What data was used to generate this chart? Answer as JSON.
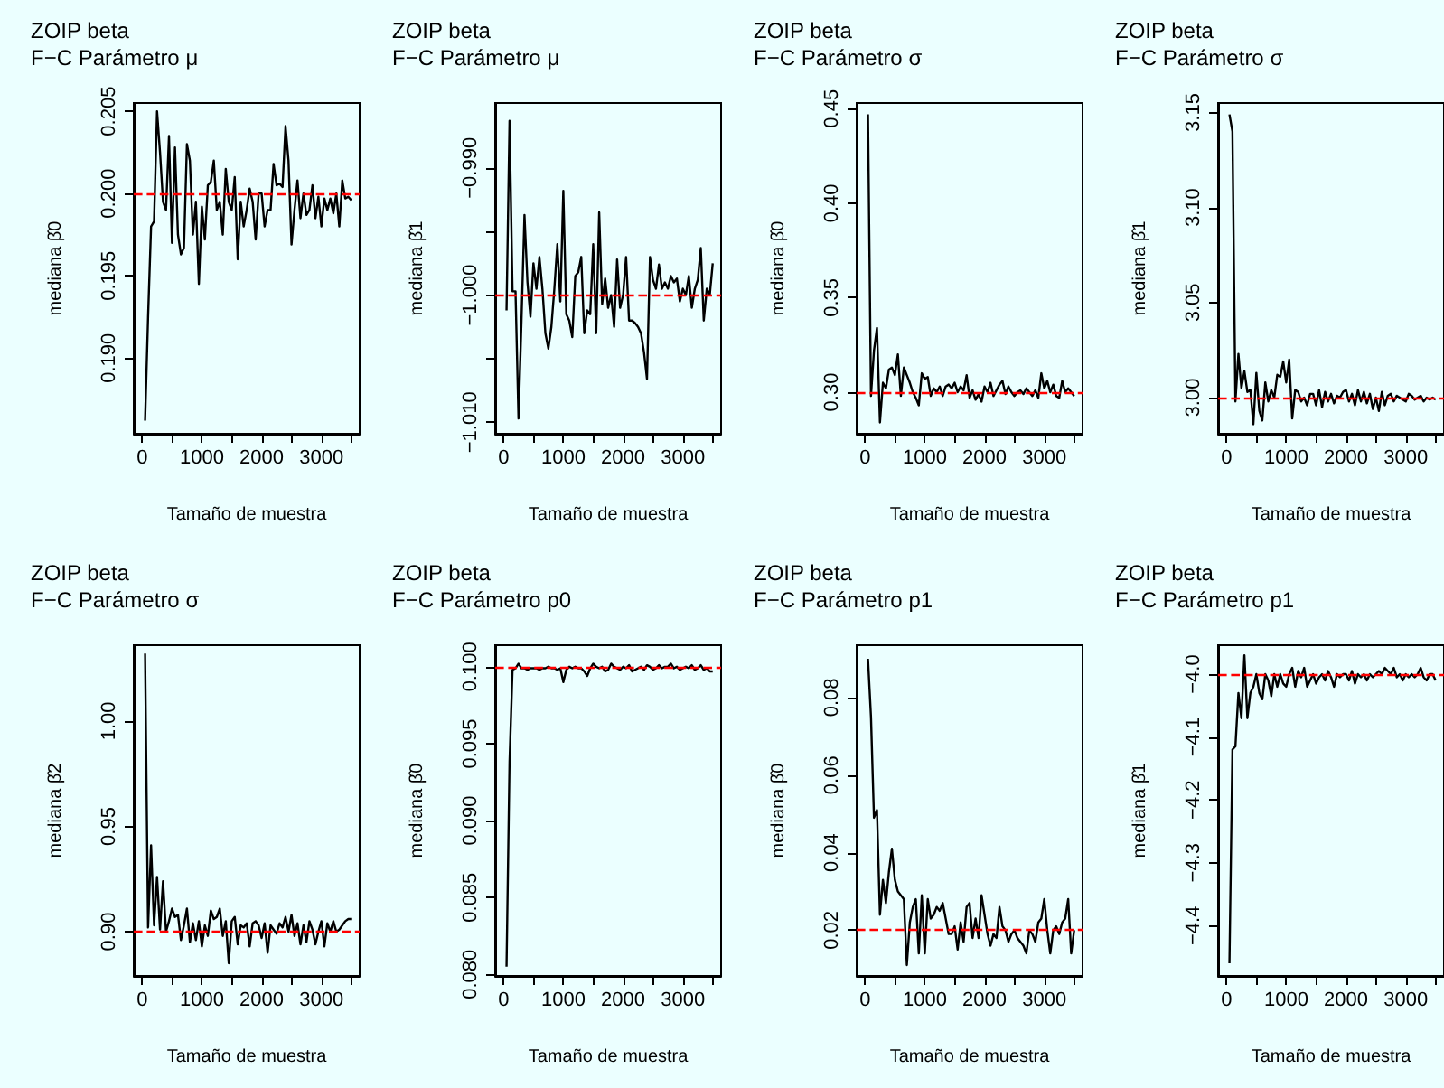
{
  "chart_data": [
    {
      "type": "line",
      "title": "ZOIP beta",
      "subtitle": "F−C Parámetro μ",
      "xlabel": "Tamaño de muestra",
      "ylabel": "mediana β̂0",
      "xlim": [
        -140,
        3640
      ],
      "xticks": [
        0,
        {
          "value": 500,
          "label": null
        },
        1000,
        {
          "value": 1500,
          "label": null
        },
        2000,
        {
          "value": 2500,
          "label": null
        },
        3000,
        {
          "value": 3500,
          "label": null
        }
      ],
      "ylim": [
        0.1854,
        0.2055
      ],
      "yticks": [
        {
          "value": 0.19,
          "label": "0.190"
        },
        {
          "value": 0.195,
          "label": "0.195"
        },
        {
          "value": 0.2,
          "label": "0.200"
        },
        {
          "value": 0.205,
          "label": "0.205"
        }
      ],
      "ref_lines": [
        {
          "axis": "y",
          "value": 0.2,
          "color": "#ff0000",
          "line_style": "dashed"
        }
      ],
      "x": [
        50,
        100,
        150,
        200,
        250,
        300,
        350,
        400,
        450,
        500,
        550,
        600,
        650,
        700,
        750,
        800,
        850,
        900,
        950,
        1000,
        1050,
        1100,
        1150,
        1200,
        1250,
        1300,
        1350,
        1400,
        1450,
        1500,
        1550,
        1600,
        1650,
        1700,
        1750,
        1800,
        1850,
        1900,
        1950,
        2000,
        2050,
        2100,
        2150,
        2200,
        2250,
        2300,
        2350,
        2400,
        2450,
        2500,
        2550,
        2600,
        2650,
        2700,
        2750,
        2800,
        2850,
        2900,
        2950,
        3000,
        3050,
        3100,
        3150,
        3200,
        3250,
        3300,
        3350,
        3400,
        3450,
        3500
      ],
      "series": [
        {
          "color": "#000000",
          "values": [
            0.1862,
            0.1925,
            0.198,
            0.1983,
            0.205,
            0.2025,
            0.1995,
            0.199,
            0.2035,
            0.197,
            0.2028,
            0.1975,
            0.1963,
            0.1967,
            0.203,
            0.202,
            0.1975,
            0.1995,
            0.1945,
            0.1992,
            0.1972,
            0.2005,
            0.2007,
            0.202,
            0.199,
            0.1995,
            0.1975,
            0.2015,
            0.1995,
            0.199,
            0.201,
            0.196,
            0.1995,
            0.198,
            0.199,
            0.2003,
            0.1995,
            0.1972,
            0.2,
            0.2,
            0.198,
            0.199,
            0.199,
            0.2018,
            0.2005,
            0.2006,
            0.2004,
            0.2041,
            0.202,
            0.1969,
            0.199,
            0.2008,
            0.1985,
            0.2,
            0.1987,
            0.199,
            0.2005,
            0.1985,
            0.1998,
            0.198,
            0.1997,
            0.199,
            0.1997,
            0.1988,
            0.2,
            0.198,
            0.2008,
            0.1997,
            0.1998,
            0.1996
          ]
        }
      ]
    },
    {
      "type": "line",
      "title": "ZOIP beta",
      "subtitle": "F−C Parámetro μ",
      "xlabel": "Tamaño de muestra",
      "ylabel": "mediana β̂1",
      "xlim": [
        -140,
        3640
      ],
      "xticks": [
        0,
        {
          "value": 500,
          "label": null
        },
        1000,
        {
          "value": 1500,
          "label": null
        },
        2000,
        {
          "value": 2500,
          "label": null
        },
        3000,
        {
          "value": 3500,
          "label": null
        }
      ],
      "ylim": [
        -1.0109,
        -0.9849
      ],
      "yticks": [
        {
          "value": -1.01,
          "label": "−1.010"
        },
        {
          "value": -1.005,
          "label": null
        },
        {
          "value": -1.0,
          "label": "−1.000"
        },
        {
          "value": -0.995,
          "label": null
        },
        {
          "value": -0.99,
          "label": "−0.990"
        }
      ],
      "ref_lines": [
        {
          "axis": "y",
          "value": -1.0,
          "color": "#ff0000",
          "line_style": "dashed"
        }
      ],
      "x": [
        50,
        100,
        150,
        200,
        250,
        300,
        350,
        400,
        450,
        500,
        550,
        600,
        650,
        700,
        750,
        800,
        850,
        900,
        950,
        1000,
        1050,
        1100,
        1150,
        1200,
        1250,
        1300,
        1350,
        1400,
        1450,
        1500,
        1550,
        1600,
        1650,
        1700,
        1750,
        1800,
        1850,
        1900,
        1950,
        2000,
        2050,
        2100,
        2150,
        2200,
        2250,
        2300,
        2350,
        2400,
        2450,
        2500,
        2550,
        2600,
        2650,
        2700,
        2750,
        2800,
        2850,
        2900,
        2950,
        3000,
        3050,
        3100,
        3150,
        3200,
        3250,
        3300,
        3350,
        3400,
        3450,
        3500
      ],
      "series": [
        {
          "color": "#000000",
          "values": [
            -1.0012,
            -0.9863,
            -0.9997,
            -0.9997,
            -1.0097,
            -1.002,
            -0.9937,
            -0.999,
            -1.0017,
            -0.9975,
            -0.9995,
            -0.997,
            -0.9995,
            -1.003,
            -1.0042,
            -1.0025,
            -0.9995,
            -0.996,
            -1.0005,
            -0.9918,
            -1.0015,
            -1.002,
            -1.0033,
            -0.9985,
            -0.9982,
            -0.997,
            -1.003,
            -1.0012,
            -1.0015,
            -0.996,
            -1.003,
            -0.9935,
            -1.0007,
            -0.9987,
            -1.001,
            -1.0,
            -1.0025,
            -0.9972,
            -1.001,
            -1.0,
            -0.997,
            -1.002,
            -1.002,
            -1.0022,
            -1.0025,
            -1.003,
            -1.0045,
            -1.0066,
            -0.997,
            -0.9988,
            -0.9995,
            -0.9976,
            -0.9995,
            -0.999,
            -0.9995,
            -0.9985,
            -0.999,
            -0.9987,
            -1.0005,
            -0.9995,
            -1.0,
            -0.9985,
            -1.001,
            -0.9995,
            -0.9988,
            -0.9963,
            -1.002,
            -0.9995,
            -1.0,
            -0.9975
          ]
        }
      ]
    },
    {
      "type": "line",
      "title": "ZOIP beta",
      "subtitle": "F−C Parámetro σ",
      "xlabel": "Tamaño de muestra",
      "ylabel": "mediana β̂0",
      "xlim": [
        -140,
        3640
      ],
      "xticks": [
        0,
        {
          "value": 500,
          "label": null
        },
        1000,
        {
          "value": 1500,
          "label": null
        },
        2000,
        {
          "value": 2500,
          "label": null
        },
        3000,
        {
          "value": 3500,
          "label": null
        }
      ],
      "ylim": [
        0.278,
        0.453
      ],
      "yticks": [
        {
          "value": 0.3,
          "label": "0.30"
        },
        {
          "value": 0.35,
          "label": "0.35"
        },
        {
          "value": 0.4,
          "label": "0.40"
        },
        {
          "value": 0.45,
          "label": "0.45"
        }
      ],
      "ref_lines": [
        {
          "axis": "y",
          "value": 0.3,
          "color": "#ff0000",
          "line_style": "dashed"
        }
      ],
      "x": [
        50,
        100,
        150,
        200,
        250,
        300,
        350,
        400,
        450,
        500,
        550,
        600,
        650,
        700,
        750,
        800,
        850,
        900,
        950,
        1000,
        1050,
        1100,
        1150,
        1200,
        1250,
        1300,
        1350,
        1400,
        1450,
        1500,
        1550,
        1600,
        1650,
        1700,
        1750,
        1800,
        1850,
        1900,
        1950,
        2000,
        2050,
        2100,
        2150,
        2200,
        2250,
        2300,
        2350,
        2400,
        2450,
        2500,
        2550,
        2600,
        2650,
        2700,
        2750,
        2800,
        2850,
        2900,
        2950,
        3000,
        3050,
        3100,
        3150,
        3200,
        3250,
        3300,
        3350,
        3400,
        3450,
        3500
      ],
      "series": [
        {
          "color": "#000000",
          "values": [
            0.447,
            0.298,
            0.322,
            0.334,
            0.284,
            0.305,
            0.302,
            0.312,
            0.313,
            0.309,
            0.32,
            0.298,
            0.313,
            0.309,
            0.305,
            0.3,
            0.297,
            0.293,
            0.31,
            0.307,
            0.308,
            0.298,
            0.302,
            0.3,
            0.303,
            0.298,
            0.303,
            0.304,
            0.302,
            0.305,
            0.3,
            0.303,
            0.301,
            0.309,
            0.297,
            0.301,
            0.296,
            0.299,
            0.295,
            0.303,
            0.3,
            0.305,
            0.298,
            0.301,
            0.304,
            0.306,
            0.299,
            0.303,
            0.3,
            0.298,
            0.3,
            0.301,
            0.299,
            0.302,
            0.3,
            0.298,
            0.301,
            0.297,
            0.31,
            0.302,
            0.306,
            0.3,
            0.304,
            0.298,
            0.297,
            0.306,
            0.3,
            0.302,
            0.3,
            0.298
          ]
        }
      ]
    },
    {
      "type": "line",
      "title": "ZOIP beta",
      "subtitle": "F−C Parámetro σ",
      "xlabel": "Tamaño de muestra",
      "ylabel": "mediana β̂1",
      "xlim": [
        -140,
        3640
      ],
      "xticks": [
        0,
        {
          "value": 500,
          "label": null
        },
        1000,
        {
          "value": 1500,
          "label": null
        },
        2000,
        {
          "value": 2500,
          "label": null
        },
        3000,
        {
          "value": 3500,
          "label": null
        }
      ],
      "ylim": [
        2.981,
        3.155
      ],
      "yticks": [
        {
          "value": 3.0,
          "label": "3.00"
        },
        {
          "value": 3.05,
          "label": "3.05"
        },
        {
          "value": 3.1,
          "label": "3.10"
        },
        {
          "value": 3.15,
          "label": "3.15"
        }
      ],
      "ref_lines": [
        {
          "axis": "y",
          "value": 3.0,
          "color": "#ff0000",
          "line_style": "dashed"
        }
      ],
      "x": [
        50,
        100,
        150,
        200,
        250,
        300,
        350,
        400,
        450,
        500,
        550,
        600,
        650,
        700,
        750,
        800,
        850,
        900,
        950,
        1000,
        1050,
        1100,
        1150,
        1200,
        1250,
        1300,
        1350,
        1400,
        1450,
        1500,
        1550,
        1600,
        1650,
        1700,
        1750,
        1800,
        1850,
        1900,
        1950,
        2000,
        2050,
        2100,
        2150,
        2200,
        2250,
        2300,
        2350,
        2400,
        2450,
        2500,
        2550,
        2600,
        2650,
        2700,
        2750,
        2800,
        2850,
        2900,
        2950,
        3000,
        3050,
        3100,
        3150,
        3200,
        3250,
        3300,
        3350,
        3400,
        3450,
        3500
      ],
      "series": [
        {
          "color": "#000000",
          "values": [
            3.149,
            3.14,
            2.998,
            3.023,
            3.005,
            3.014,
            3.003,
            3.004,
            2.986,
            3.013,
            2.993,
            2.988,
            3.008,
            2.998,
            3.004,
            3.0,
            3.012,
            3.011,
            3.019,
            3.008,
            3.02,
            2.989,
            3.004,
            3.003,
            2.998,
            3.0,
            2.996,
            3.002,
            3.002,
            2.996,
            3.004,
            2.995,
            3.003,
            2.998,
            3.002,
            2.997,
            3.001,
            3.0,
            3.003,
            3.004,
            2.998,
            3.002,
            2.996,
            3.004,
            2.998,
            3.003,
            2.997,
            3.002,
            2.994,
            3.0,
            2.993,
            3.003,
            2.996,
            3.001,
            3.002,
            2.998,
            3.001,
            3.0,
            2.999,
            2.998,
            3.002,
            3.001,
            2.999,
            3.0,
            3.001,
            2.998,
            3.0,
            2.999,
            3.0,
            2.999
          ]
        }
      ]
    },
    {
      "type": "line",
      "title": "ZOIP beta",
      "subtitle": "F−C Parámetro σ",
      "xlabel": "Tamaño de muestra",
      "ylabel": "mediana β̂2",
      "xlim": [
        -140,
        3640
      ],
      "xticks": [
        0,
        {
          "value": 500,
          "label": null
        },
        1000,
        {
          "value": 1500,
          "label": null
        },
        2000,
        {
          "value": 2500,
          "label": null
        },
        3000,
        {
          "value": 3500,
          "label": null
        }
      ],
      "ylim": [
        0.879,
        1.036
      ],
      "yticks": [
        {
          "value": 0.9,
          "label": "0.90"
        },
        {
          "value": 0.95,
          "label": "0.95"
        },
        {
          "value": 1.0,
          "label": "1.00"
        }
      ],
      "ref_lines": [
        {
          "axis": "y",
          "value": 0.9,
          "color": "#ff0000",
          "line_style": "dashed"
        }
      ],
      "x": [
        50,
        100,
        150,
        200,
        250,
        300,
        350,
        400,
        450,
        500,
        550,
        600,
        650,
        700,
        750,
        800,
        850,
        900,
        950,
        1000,
        1050,
        1100,
        1150,
        1200,
        1250,
        1300,
        1350,
        1400,
        1450,
        1500,
        1550,
        1600,
        1650,
        1700,
        1750,
        1800,
        1850,
        1900,
        1950,
        2000,
        2050,
        2100,
        2150,
        2200,
        2250,
        2300,
        2350,
        2400,
        2450,
        2500,
        2550,
        2600,
        2650,
        2700,
        2750,
        2800,
        2850,
        2900,
        2950,
        3000,
        3050,
        3100,
        3150,
        3200,
        3250,
        3300,
        3350,
        3400,
        3450,
        3500
      ],
      "series": [
        {
          "color": "#000000",
          "values": [
            1.032,
            0.902,
            0.941,
            0.903,
            0.926,
            0.901,
            0.924,
            0.9,
            0.905,
            0.911,
            0.907,
            0.908,
            0.896,
            0.903,
            0.911,
            0.895,
            0.904,
            0.896,
            0.905,
            0.893,
            0.903,
            0.898,
            0.91,
            0.906,
            0.907,
            0.911,
            0.898,
            0.905,
            0.885,
            0.905,
            0.907,
            0.894,
            0.903,
            0.902,
            0.904,
            0.893,
            0.904,
            0.905,
            0.903,
            0.897,
            0.904,
            0.89,
            0.903,
            0.901,
            0.899,
            0.904,
            0.902,
            0.907,
            0.9,
            0.908,
            0.898,
            0.904,
            0.894,
            0.903,
            0.895,
            0.905,
            0.901,
            0.894,
            0.9,
            0.905,
            0.893,
            0.904,
            0.9,
            0.905,
            0.9,
            0.901,
            0.903,
            0.905,
            0.906,
            0.906
          ]
        }
      ]
    },
    {
      "type": "line",
      "title": "ZOIP beta",
      "subtitle": "F−C Parámetro p0",
      "xlabel": "Tamaño de muestra",
      "ylabel": "mediana β̂0",
      "xlim": [
        -140,
        3640
      ],
      "xticks": [
        0,
        {
          "value": 500,
          "label": null
        },
        1000,
        {
          "value": 1500,
          "label": null
        },
        2000,
        {
          "value": 2500,
          "label": null
        },
        3000,
        {
          "value": 3500,
          "label": null
        }
      ],
      "ylim": [
        0.0799,
        0.1014
      ],
      "yticks": [
        {
          "value": 0.08,
          "label": "0.080"
        },
        {
          "value": 0.085,
          "label": "0.085"
        },
        {
          "value": 0.09,
          "label": "0.090"
        },
        {
          "value": 0.095,
          "label": "0.095"
        },
        {
          "value": 0.1,
          "label": "0.100"
        }
      ],
      "ref_lines": [
        {
          "axis": "y",
          "value": 0.1,
          "color": "#ff0000",
          "line_style": "dashed"
        }
      ],
      "x": [
        50,
        100,
        150,
        200,
        250,
        300,
        350,
        400,
        450,
        500,
        550,
        600,
        650,
        700,
        750,
        800,
        850,
        900,
        950,
        1000,
        1050,
        1100,
        1150,
        1200,
        1250,
        1300,
        1350,
        1400,
        1450,
        1500,
        1550,
        1600,
        1650,
        1700,
        1750,
        1800,
        1850,
        1900,
        1950,
        2000,
        2050,
        2100,
        2150,
        2200,
        2250,
        2300,
        2350,
        2400,
        2450,
        2500,
        2550,
        2600,
        2650,
        2700,
        2750,
        2800,
        2850,
        2900,
        2950,
        3000,
        3050,
        3100,
        3150,
        3200,
        3250,
        3300,
        3350,
        3400,
        3450,
        3500
      ],
      "series": [
        {
          "color": "#000000",
          "values": [
            0.0805,
            0.0938,
            0.0998,
            0.0999,
            0.1002,
            0.0999,
            0.0999,
            0.0998,
            0.0999,
            0.0999,
            0.0999,
            0.0998,
            0.0999,
            0.0999,
            0.1,
            0.0999,
            0.0999,
            0.0998,
            0.0999,
            0.099,
            0.0998,
            0.1,
            0.0999,
            0.1,
            0.0999,
            0.0999,
            0.0997,
            0.0994,
            0.0999,
            0.1002,
            0.1,
            0.0999,
            0.1,
            0.0997,
            0.0998,
            0.1002,
            0.1,
            0.0999,
            0.0998,
            0.1,
            0.0999,
            0.1001,
            0.0997,
            0.0998,
            0.0999,
            0.1,
            0.0998,
            0.1001,
            0.1,
            0.0998,
            0.0999,
            0.1001,
            0.0999,
            0.1,
            0.1,
            0.1002,
            0.0999,
            0.1,
            0.0998,
            0.0999,
            0.1,
            0.0999,
            0.1001,
            0.0998,
            0.0999,
            0.1001,
            0.0998,
            0.0999,
            0.0997,
            0.0997
          ]
        }
      ]
    },
    {
      "type": "line",
      "title": "ZOIP beta",
      "subtitle": "F−C Parámetro p1",
      "xlabel": "Tamaño de muestra",
      "ylabel": "mediana β̂0",
      "xlim": [
        -140,
        3640
      ],
      "xticks": [
        0,
        {
          "value": 500,
          "label": null
        },
        1000,
        {
          "value": 1500,
          "label": null
        },
        2000,
        {
          "value": 2500,
          "label": null
        },
        3000,
        {
          "value": 3500,
          "label": null
        }
      ],
      "ylim": [
        0.0082,
        0.0935
      ],
      "yticks": [
        {
          "value": 0.02,
          "label": "0.02"
        },
        {
          "value": 0.04,
          "label": "0.04"
        },
        {
          "value": 0.06,
          "label": "0.06"
        },
        {
          "value": 0.08,
          "label": "0.08"
        }
      ],
      "ref_lines": [
        {
          "axis": "y",
          "value": 0.02,
          "color": "#ff0000",
          "line_style": "dashed"
        }
      ],
      "x": [
        50,
        100,
        150,
        200,
        250,
        300,
        350,
        400,
        450,
        500,
        550,
        600,
        650,
        700,
        750,
        800,
        850,
        900,
        950,
        1000,
        1050,
        1100,
        1150,
        1200,
        1250,
        1300,
        1350,
        1400,
        1450,
        1500,
        1550,
        1600,
        1650,
        1700,
        1750,
        1800,
        1850,
        1900,
        1950,
        2000,
        2050,
        2100,
        2150,
        2200,
        2250,
        2300,
        2350,
        2400,
        2450,
        2500,
        2550,
        2600,
        2650,
        2700,
        2750,
        2800,
        2850,
        2900,
        2950,
        3000,
        3050,
        3100,
        3150,
        3200,
        3250,
        3300,
        3350,
        3400,
        3450,
        3500
      ],
      "series": [
        {
          "color": "#000000",
          "values": [
            0.09,
            0.075,
            0.049,
            0.051,
            0.024,
            0.033,
            0.027,
            0.035,
            0.041,
            0.033,
            0.03,
            0.029,
            0.028,
            0.011,
            0.022,
            0.026,
            0.028,
            0.014,
            0.029,
            0.014,
            0.028,
            0.023,
            0.024,
            0.026,
            0.025,
            0.027,
            0.023,
            0.019,
            0.019,
            0.021,
            0.015,
            0.022,
            0.017,
            0.026,
            0.027,
            0.018,
            0.023,
            0.018,
            0.029,
            0.024,
            0.019,
            0.016,
            0.019,
            0.018,
            0.026,
            0.021,
            0.02,
            0.017,
            0.019,
            0.02,
            0.018,
            0.017,
            0.016,
            0.014,
            0.02,
            0.019,
            0.017,
            0.022,
            0.023,
            0.028,
            0.02,
            0.014,
            0.02,
            0.021,
            0.019,
            0.022,
            0.023,
            0.028,
            0.014,
            0.02
          ]
        }
      ]
    },
    {
      "type": "line",
      "title": "ZOIP beta",
      "subtitle": "F−C Parámetro p1",
      "xlabel": "Tamaño de muestra",
      "ylabel": "mediana β̂1",
      "xlim": [
        -140,
        3640
      ],
      "xticks": [
        0,
        {
          "value": 500,
          "label": null
        },
        1000,
        {
          "value": 1500,
          "label": null
        },
        2000,
        {
          "value": 2500,
          "label": null
        },
        3000,
        {
          "value": 3500,
          "label": null
        }
      ],
      "ylim": [
        -4.48,
        -3.954
      ],
      "yticks": [
        {
          "value": -4.4,
          "label": "−4.4"
        },
        {
          "value": -4.3,
          "label": "−4.3"
        },
        {
          "value": -4.2,
          "label": "−4.2"
        },
        {
          "value": -4.1,
          "label": "−4.1"
        },
        {
          "value": -4.0,
          "label": "−4.0"
        }
      ],
      "ref_lines": [
        {
          "axis": "y",
          "value": -4.0,
          "color": "#ff0000",
          "line_style": "dashed"
        }
      ],
      "x": [
        50,
        100,
        150,
        200,
        250,
        300,
        350,
        400,
        450,
        500,
        550,
        600,
        650,
        700,
        750,
        800,
        850,
        900,
        950,
        1000,
        1050,
        1100,
        1150,
        1200,
        1250,
        1300,
        1350,
        1400,
        1450,
        1500,
        1550,
        1600,
        1650,
        1700,
        1750,
        1800,
        1850,
        1900,
        1950,
        2000,
        2050,
        2100,
        2150,
        2200,
        2250,
        2300,
        2350,
        2400,
        2450,
        2500,
        2550,
        2600,
        2650,
        2700,
        2750,
        2800,
        2850,
        2900,
        2950,
        3000,
        3050,
        3100,
        3150,
        3200,
        3250,
        3300,
        3350,
        3400,
        3450,
        3500
      ],
      "series": [
        {
          "color": "#000000",
          "values": [
            -4.46,
            -4.12,
            -4.115,
            -4.03,
            -4.07,
            -3.97,
            -4.07,
            -4.03,
            -4.02,
            -4.0,
            -4.03,
            -4.04,
            -4.0,
            -4.01,
            -4.035,
            -4.0,
            -4.02,
            -4.0,
            -4.015,
            -4.02,
            -4.0,
            -3.99,
            -4.02,
            -3.995,
            -4.005,
            -3.99,
            -4.02,
            -4.01,
            -4.0,
            -4.015,
            -4.005,
            -4.0,
            -4.01,
            -3.995,
            -4.005,
            -4.02,
            -4.0,
            -4.005,
            -4.0,
            -4.0,
            -4.01,
            -3.995,
            -4.015,
            -4.0,
            -4.005,
            -4.0,
            -4.01,
            -4.0,
            -4.005,
            -4.0,
            -3.995,
            -4.0,
            -3.99,
            -3.995,
            -4.0,
            -3.99,
            -4.005,
            -4.0,
            -4.01,
            -4.0,
            -4.005,
            -4.0,
            -4.005,
            -4.0,
            -3.99,
            -4.005,
            -4.01,
            -4.0,
            -4.0,
            -4.01
          ]
        }
      ]
    }
  ]
}
